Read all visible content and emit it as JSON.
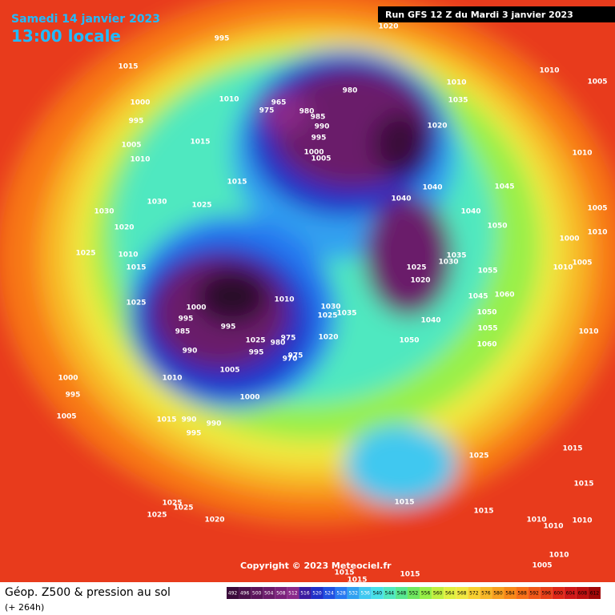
{
  "header": {
    "date": "Samedi 14 janvier 2023",
    "time": "13:00 locale",
    "run": "Run GFS 12 Z du Mardi 3 janvier 2023"
  },
  "copyright": "Copyright © 2023 Meteociel.fr",
  "footer": {
    "title": "Géop. Z500 & pression au sol",
    "lead": "(+ 264h)"
  },
  "scale": {
    "values": [
      492,
      496,
      500,
      504,
      508,
      512,
      516,
      520,
      524,
      528,
      532,
      536,
      540,
      544,
      548,
      552,
      556,
      560,
      564,
      568,
      572,
      576,
      580,
      584,
      588,
      592,
      596,
      600,
      604,
      608,
      612
    ],
    "colors": [
      "#3a0a3a",
      "#4a0f4a",
      "#5a145a",
      "#6a1a6a",
      "#7a207a",
      "#8a2a8a",
      "#3a1aa0",
      "#2030c8",
      "#2050e0",
      "#2878f0",
      "#30a0f0",
      "#40c8f0",
      "#48e0e8",
      "#50e8c0",
      "#58e890",
      "#70e860",
      "#98f048",
      "#c0f040",
      "#e0f040",
      "#f0e840",
      "#f8d030",
      "#f8b828",
      "#f8a020",
      "#f88818",
      "#f87018",
      "#f05818",
      "#e84018",
      "#e02818",
      "#d01818",
      "#c01010",
      "#a00808"
    ]
  },
  "pressure_labels": [
    995,
    1020,
    1015,
    1010,
    1010,
    1010,
    1005,
    1000,
    995,
    965,
    975,
    980,
    980,
    985,
    990,
    995,
    1000,
    1005,
    1020,
    1035,
    1005,
    1015,
    1010,
    1010,
    1015,
    1045,
    1040,
    1040,
    1030,
    1025,
    1030,
    1040,
    1005,
    1020,
    1050,
    1010,
    1000,
    1025,
    1010,
    1015,
    1025,
    1030,
    1035,
    1020,
    1055,
    1010,
    1005,
    1025,
    1010,
    1000,
    995,
    985,
    990,
    995,
    1030,
    1025,
    1035,
    1040,
    1045,
    1060,
    1050,
    1055,
    1060,
    1010,
    1020,
    1050,
    1025,
    975,
    980,
    995,
    975,
    970,
    1005,
    1010,
    1000,
    995,
    1000,
    1005,
    1015,
    990,
    990,
    995,
    1025,
    1015,
    1015,
    1015,
    1015,
    1010,
    1010,
    1025,
    1025,
    1025,
    1020,
    1010,
    1010,
    1005,
    1015,
    1015,
    1015
  ]
}
